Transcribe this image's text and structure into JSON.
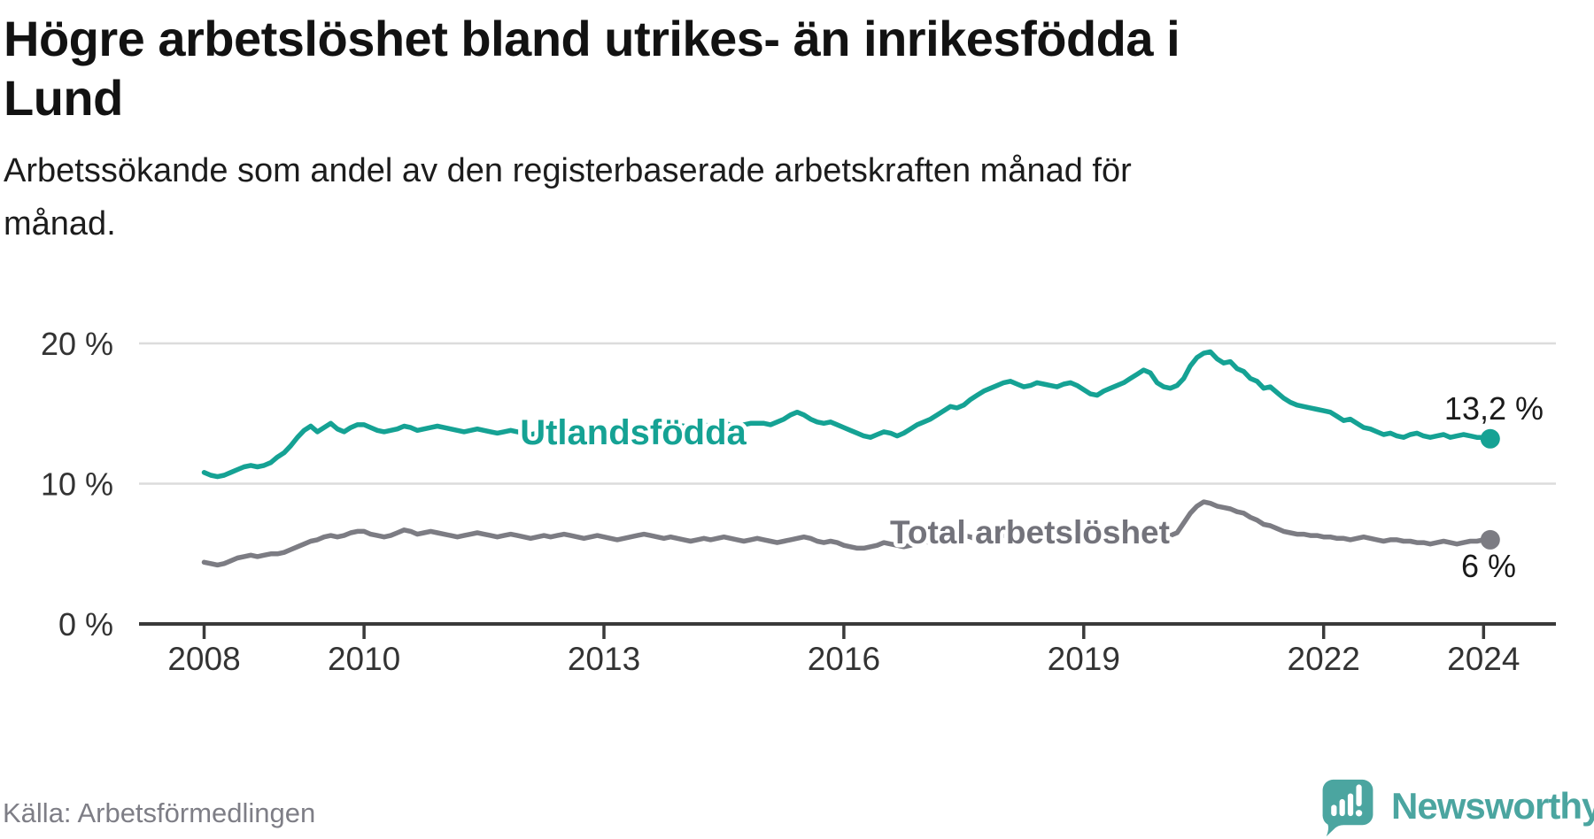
{
  "title": "Högre arbetslöshet bland utrikes- än inrikesfödda i Lund",
  "title_lines": [
    "Högre arbetslöshet bland utrikes- än inrikesfödda i",
    "Lund"
  ],
  "subtitle": "Arbetssökande som andel av den registerbaserade arbetskraften månad för månad.",
  "subtitle_lines": [
    "Arbetssökande som andel av den registerbaserade arbetskraften månad för",
    "månad."
  ],
  "source": "Källa: Arbetsförmedlingen",
  "logo": {
    "text": "Newsworthy",
    "color": "#4ba5a0",
    "icon": "speech-bubble-bar-chart"
  },
  "colors": {
    "accent_teal": "#15a294",
    "line_gray": "#7c7c83",
    "label_gray": "#73737b",
    "axis_text": "#333333",
    "axis_line": "#3a3a3a",
    "gridline": "#dcdcdc",
    "value_label": "#1a1a1a"
  },
  "chart_data": {
    "type": "line",
    "unit": "%",
    "x_start": "2008-01",
    "x_end": "2024-02",
    "points_interval": "monthly",
    "x_ticks": [
      2008,
      2010,
      2013,
      2016,
      2019,
      2022,
      2024
    ],
    "y_ticks": [
      0,
      10,
      20
    ],
    "y_tick_labels": [
      "0 %",
      "10 %",
      "20 %"
    ],
    "ylim": [
      0,
      23.5
    ],
    "grid": "horizontal-only",
    "legend": "inline-labels-on-lines",
    "series": [
      {
        "name": "Utlandsfödda",
        "color": "#15a294",
        "label_color": "#15a294",
        "end_label": "13,2 %",
        "end_value": 13.2,
        "values": [
          10.8,
          10.6,
          10.5,
          10.6,
          10.8,
          11.0,
          11.2,
          11.3,
          11.2,
          11.3,
          11.5,
          11.9,
          12.2,
          12.7,
          13.3,
          13.8,
          14.1,
          13.7,
          14.0,
          14.3,
          13.9,
          13.7,
          14.0,
          14.2,
          14.2,
          14.0,
          13.8,
          13.7,
          13.8,
          13.9,
          14.1,
          14.0,
          13.8,
          13.9,
          14.0,
          14.1,
          14.0,
          13.9,
          13.8,
          13.7,
          13.8,
          13.9,
          13.8,
          13.7,
          13.6,
          13.7,
          13.8,
          13.7,
          13.6,
          13.5,
          13.6,
          13.7,
          13.6,
          13.7,
          13.8,
          13.9,
          13.8,
          13.7,
          13.8,
          13.9,
          13.9,
          13.8,
          13.9,
          14.0,
          14.1,
          14.0,
          14.1,
          14.2,
          14.1,
          14.0,
          14.1,
          14.2,
          14.1,
          14.0,
          14.1,
          14.2,
          14.1,
          14.2,
          14.3,
          14.2,
          14.1,
          14.2,
          14.3,
          14.3,
          14.3,
          14.2,
          14.4,
          14.6,
          14.9,
          15.1,
          14.9,
          14.6,
          14.4,
          14.3,
          14.4,
          14.2,
          14.0,
          13.8,
          13.6,
          13.4,
          13.3,
          13.5,
          13.7,
          13.6,
          13.4,
          13.6,
          13.9,
          14.2,
          14.4,
          14.6,
          14.9,
          15.2,
          15.5,
          15.4,
          15.6,
          16.0,
          16.3,
          16.6,
          16.8,
          17.0,
          17.2,
          17.3,
          17.1,
          16.9,
          17.0,
          17.2,
          17.1,
          17.0,
          16.9,
          17.1,
          17.2,
          17.0,
          16.7,
          16.4,
          16.3,
          16.6,
          16.8,
          17.0,
          17.2,
          17.5,
          17.8,
          18.1,
          17.9,
          17.2,
          16.9,
          16.8,
          17.0,
          17.5,
          18.4,
          19.0,
          19.3,
          19.4,
          18.9,
          18.6,
          18.7,
          18.2,
          18.0,
          17.5,
          17.3,
          16.8,
          16.9,
          16.5,
          16.1,
          15.8,
          15.6,
          15.5,
          15.4,
          15.3,
          15.2,
          15.1,
          14.8,
          14.5,
          14.6,
          14.3,
          14.0,
          13.9,
          13.7,
          13.5,
          13.6,
          13.4,
          13.3,
          13.5,
          13.6,
          13.4,
          13.3,
          13.4,
          13.5,
          13.3,
          13.4,
          13.5,
          13.4,
          13.3,
          13.3,
          13.2
        ]
      },
      {
        "name": "Total arbetslöshet",
        "color": "#7c7c83",
        "label_color": "#73737b",
        "end_label": "6 %",
        "end_value": 6.0,
        "values": [
          4.4,
          4.3,
          4.2,
          4.3,
          4.5,
          4.7,
          4.8,
          4.9,
          4.8,
          4.9,
          5.0,
          5.0,
          5.1,
          5.3,
          5.5,
          5.7,
          5.9,
          6.0,
          6.2,
          6.3,
          6.2,
          6.3,
          6.5,
          6.6,
          6.6,
          6.4,
          6.3,
          6.2,
          6.3,
          6.5,
          6.7,
          6.6,
          6.4,
          6.5,
          6.6,
          6.5,
          6.4,
          6.3,
          6.2,
          6.3,
          6.4,
          6.5,
          6.4,
          6.3,
          6.2,
          6.3,
          6.4,
          6.3,
          6.2,
          6.1,
          6.2,
          6.3,
          6.2,
          6.3,
          6.4,
          6.3,
          6.2,
          6.1,
          6.2,
          6.3,
          6.2,
          6.1,
          6.0,
          6.1,
          6.2,
          6.3,
          6.4,
          6.3,
          6.2,
          6.1,
          6.2,
          6.1,
          6.0,
          5.9,
          6.0,
          6.1,
          6.0,
          6.1,
          6.2,
          6.1,
          6.0,
          5.9,
          6.0,
          6.1,
          6.0,
          5.9,
          5.8,
          5.9,
          6.0,
          6.1,
          6.2,
          6.1,
          5.9,
          5.8,
          5.9,
          5.8,
          5.6,
          5.5,
          5.4,
          5.4,
          5.5,
          5.6,
          5.8,
          5.7,
          5.6,
          5.5,
          5.6,
          5.8,
          5.9,
          5.8,
          5.7,
          5.8,
          6.0,
          6.2,
          6.3,
          6.2,
          6.0,
          6.1,
          6.2,
          6.3,
          6.3,
          6.2,
          6.1,
          6.0,
          6.1,
          6.3,
          6.4,
          6.3,
          6.1,
          6.2,
          6.3,
          6.2,
          6.3,
          6.2,
          6.1,
          6.2,
          6.4,
          6.5,
          6.6,
          6.5,
          6.4,
          6.5,
          6.6,
          6.5,
          6.4,
          6.3,
          6.5,
          7.2,
          7.9,
          8.4,
          8.7,
          8.6,
          8.4,
          8.3,
          8.2,
          8.0,
          7.9,
          7.6,
          7.4,
          7.1,
          7.0,
          6.8,
          6.6,
          6.5,
          6.4,
          6.4,
          6.3,
          6.3,
          6.2,
          6.2,
          6.1,
          6.1,
          6.0,
          6.1,
          6.2,
          6.1,
          6.0,
          5.9,
          6.0,
          6.0,
          5.9,
          5.9,
          5.8,
          5.8,
          5.7,
          5.8,
          5.9,
          5.8,
          5.7,
          5.8,
          5.9,
          5.9,
          6.0,
          6.0
        ]
      }
    ]
  }
}
